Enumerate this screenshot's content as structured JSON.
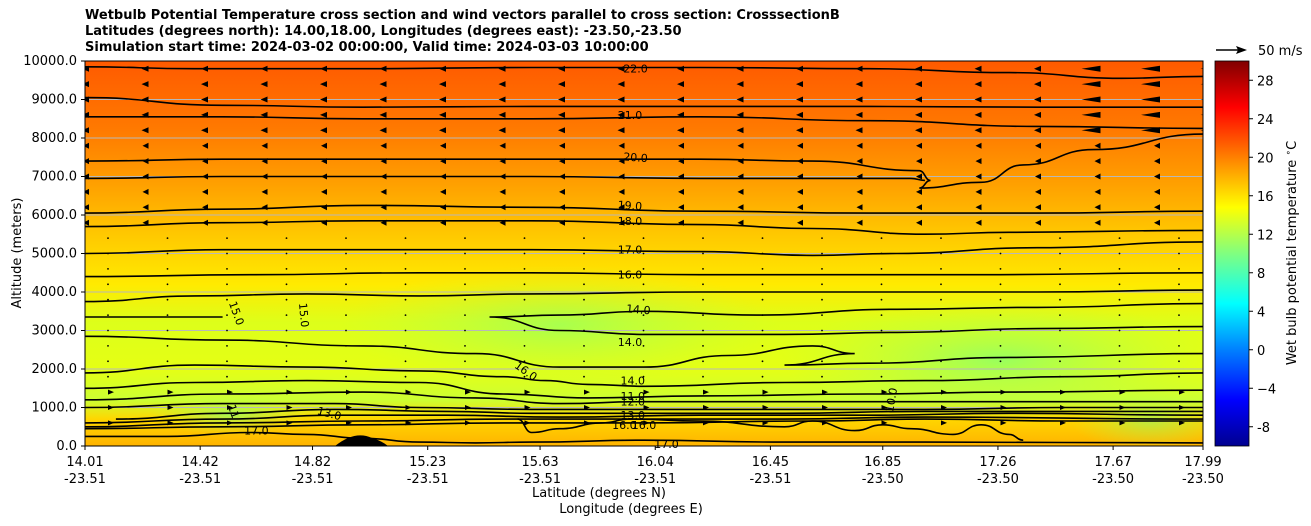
{
  "chart_data": {
    "type": "contour",
    "title": [
      "Wetbulb Potential Temperature cross section and wind vectors parallel to cross section: CrosssectionB",
      "Latitudes (degrees north): 14.00,18.00, Longitudes (degrees east): -23.50,-23.50",
      "Simulation start time: 2024-03-02 00:00:00, Valid time: 2024-03-03 10:00:00"
    ],
    "ylabel": "Altitude (meters)",
    "xlabel_lat": "Latitude (degrees N)",
    "xlabel_lon": "Longitude (degrees E)",
    "ylim": [
      0,
      10000
    ],
    "yticks": [
      "0.0",
      "1000.0",
      "2000.0",
      "3000.0",
      "4000.0",
      "5000.0",
      "6000.0",
      "7000.0",
      "8000.0",
      "9000.0",
      "10000.0"
    ],
    "xlim": [
      14.01,
      17.99
    ],
    "xticks_lat": [
      "14.01",
      "14.42",
      "14.82",
      "15.23",
      "15.63",
      "16.04",
      "16.45",
      "16.85",
      "17.26",
      "17.67",
      "17.99"
    ],
    "xticks_lon": [
      "-23.51",
      "-23.51",
      "-23.51",
      "-23.51",
      "-23.51",
      "-23.51",
      "-23.51",
      "-23.50",
      "-23.50",
      "-23.50",
      "-23.50"
    ],
    "colorbar": {
      "label": "Wet bulb potential temperature $^\\circ$C",
      "range": [
        -10,
        30
      ],
      "ticks": [
        "-8",
        "−4",
        "0",
        "4",
        "8",
        "12",
        "16",
        "20",
        "24",
        "28"
      ]
    },
    "quiver_key": "50 m/s",
    "contour_labels": [
      {
        "text": "22.0",
        "lat": 15.97,
        "alt": 9800,
        "rot": 0
      },
      {
        "text": "21.0",
        "lat": 15.95,
        "alt": 8600,
        "rot": 0
      },
      {
        "text": "20.0",
        "lat": 15.97,
        "alt": 7500,
        "rot": 4
      },
      {
        "text": "19.0",
        "lat": 15.95,
        "alt": 6250,
        "rot": 4
      },
      {
        "text": "18.0",
        "lat": 15.95,
        "alt": 5850,
        "rot": 0
      },
      {
        "text": "17.0",
        "lat": 15.95,
        "alt": 5100,
        "rot": 0
      },
      {
        "text": "16.0",
        "lat": 15.95,
        "alt": 4450,
        "rot": 0
      },
      {
        "text": "14.0",
        "lat": 15.98,
        "alt": 3550,
        "rot": 5
      },
      {
        "text": "14.0",
        "lat": 15.95,
        "alt": 2700,
        "rot": 0
      },
      {
        "text": "15.0",
        "lat": 14.55,
        "alt": 3450,
        "rot": 70
      },
      {
        "text": "15.0",
        "lat": 14.79,
        "alt": 3400,
        "rot": 85
      },
      {
        "text": "16.0",
        "lat": 15.58,
        "alt": 1950,
        "rot": 35
      },
      {
        "text": "14.0",
        "lat": 15.96,
        "alt": 1700,
        "rot": 0
      },
      {
        "text": "11.0",
        "lat": 15.96,
        "alt": 1300,
        "rot": 0
      },
      {
        "text": "12.0",
        "lat": 15.96,
        "alt": 1150,
        "rot": 0
      },
      {
        "text": "13.0",
        "lat": 15.96,
        "alt": 800,
        "rot": 0
      },
      {
        "text": "16.0",
        "lat": 15.93,
        "alt": 550,
        "rot": 0
      },
      {
        "text": "16.0",
        "lat": 16.0,
        "alt": 550,
        "rot": 0
      },
      {
        "text": "17.0",
        "lat": 14.62,
        "alt": 400,
        "rot": 0
      },
      {
        "text": "17.0",
        "lat": 16.08,
        "alt": 50,
        "rot": 0
      },
      {
        "text": "13.0",
        "lat": 14.88,
        "alt": 850,
        "rot": 15
      },
      {
        "text": "11",
        "lat": 14.54,
        "alt": 900,
        "rot": 70
      },
      {
        "text": "10.0",
        "lat": 16.88,
        "alt": 1200,
        "rot": -80
      }
    ],
    "contour_lines": [
      {
        "level": 22,
        "points": [
          [
            14.01,
            9850
          ],
          [
            14.4,
            9800
          ],
          [
            15.0,
            9800
          ],
          [
            15.6,
            9830
          ],
          [
            16.2,
            9830
          ],
          [
            16.8,
            9800
          ],
          [
            17.3,
            9700
          ],
          [
            17.7,
            9550
          ],
          [
            17.99,
            9600
          ]
        ]
      },
      {
        "level": 21.5,
        "points": [
          [
            14.01,
            9050
          ],
          [
            14.5,
            8850
          ],
          [
            15.0,
            8800
          ],
          [
            15.6,
            8820
          ],
          [
            16.2,
            8820
          ],
          [
            16.8,
            8820
          ],
          [
            17.4,
            8800
          ],
          [
            17.99,
            8800
          ]
        ]
      },
      {
        "level": 21,
        "points": [
          [
            14.01,
            8550
          ],
          [
            14.5,
            8550
          ],
          [
            15.0,
            8500
          ],
          [
            15.6,
            8500
          ],
          [
            16.2,
            8550
          ],
          [
            16.8,
            8450
          ],
          [
            17.4,
            8300
          ],
          [
            17.99,
            8250
          ]
        ]
      },
      {
        "level": 20,
        "points": [
          [
            14.01,
            7400
          ],
          [
            14.5,
            7450
          ],
          [
            15.0,
            7450
          ],
          [
            15.6,
            7450
          ],
          [
            16.2,
            7450
          ],
          [
            16.6,
            7400
          ],
          [
            16.98,
            7150
          ],
          [
            17.02,
            6900
          ],
          [
            16.98,
            6700
          ],
          [
            17.2,
            6850
          ],
          [
            17.35,
            7300
          ],
          [
            17.6,
            7700
          ],
          [
            17.99,
            8100
          ]
        ]
      },
      {
        "level": 19.5,
        "points": [
          [
            14.01,
            6950
          ],
          [
            14.5,
            7000
          ],
          [
            15.0,
            7000
          ],
          [
            15.6,
            7000
          ],
          [
            16.2,
            6950
          ],
          [
            16.5,
            6950
          ],
          [
            16.95,
            6950
          ],
          [
            17.0,
            6900
          ]
        ]
      },
      {
        "level": 19,
        "points": [
          [
            14.01,
            6050
          ],
          [
            14.5,
            6150
          ],
          [
            15.0,
            6250
          ],
          [
            15.6,
            6200
          ],
          [
            16.2,
            6100
          ],
          [
            16.8,
            6050
          ],
          [
            17.4,
            6050
          ],
          [
            17.99,
            6100
          ]
        ]
      },
      {
        "level": 18,
        "points": [
          [
            14.01,
            5700
          ],
          [
            14.5,
            5800
          ],
          [
            15.0,
            5850
          ],
          [
            15.6,
            5850
          ],
          [
            16.2,
            5750
          ],
          [
            16.6,
            5650
          ],
          [
            17.0,
            5500
          ],
          [
            17.3,
            5550
          ],
          [
            17.99,
            5600
          ]
        ]
      },
      {
        "level": 17,
        "points": [
          [
            14.01,
            5000
          ],
          [
            14.5,
            5100
          ],
          [
            15.0,
            5100
          ],
          [
            15.6,
            5100
          ],
          [
            16.2,
            5050
          ],
          [
            16.6,
            4950
          ],
          [
            16.9,
            5000
          ],
          [
            17.4,
            5150
          ],
          [
            17.99,
            5300
          ]
        ]
      },
      {
        "level": 16.5,
        "points": [
          [
            14.01,
            4400
          ],
          [
            14.6,
            4450
          ],
          [
            15.2,
            4500
          ],
          [
            15.6,
            4500
          ],
          [
            16.2,
            4450
          ],
          [
            16.7,
            4450
          ],
          [
            17.2,
            4450
          ],
          [
            17.99,
            4500
          ]
        ]
      },
      {
        "level": 16,
        "points": [
          [
            14.01,
            3750
          ],
          [
            14.4,
            3900
          ],
          [
            14.8,
            3950
          ],
          [
            15.2,
            3900
          ],
          [
            15.6,
            3950
          ],
          [
            16.2,
            4000
          ],
          [
            16.8,
            4000
          ],
          [
            17.4,
            4000
          ],
          [
            17.99,
            4050
          ]
        ]
      },
      {
        "level": 14,
        "points": [
          [
            17.99,
            3700
          ],
          [
            17.4,
            3600
          ],
          [
            16.9,
            3550
          ],
          [
            16.4,
            3400
          ],
          [
            16.0,
            3500
          ],
          [
            15.7,
            3400
          ],
          [
            15.45,
            3350
          ],
          [
            15.7,
            3000
          ],
          [
            16.0,
            2900
          ],
          [
            16.5,
            2900
          ],
          [
            16.9,
            2950
          ],
          [
            17.4,
            3050
          ],
          [
            17.99,
            3100
          ]
        ]
      },
      {
        "level": 15,
        "points": [
          [
            14.01,
            3350
          ],
          [
            14.3,
            3350
          ],
          [
            14.5,
            3350
          ]
        ]
      },
      {
        "level": 15.5,
        "points": [
          [
            14.01,
            2850
          ],
          [
            14.5,
            2750
          ],
          [
            15.0,
            2600
          ],
          [
            15.4,
            2400
          ],
          [
            15.7,
            2050
          ],
          [
            16.0,
            2050
          ],
          [
            16.3,
            2350
          ],
          [
            16.6,
            2600
          ],
          [
            16.75,
            2400
          ],
          [
            16.5,
            2100
          ],
          [
            16.8,
            2150
          ],
          [
            17.3,
            2300
          ],
          [
            17.99,
            2400
          ]
        ]
      },
      {
        "level": 16,
        "points": [
          [
            14.01,
            1900
          ],
          [
            14.4,
            2100
          ],
          [
            14.8,
            2050
          ],
          [
            15.2,
            1950
          ],
          [
            15.5,
            1800
          ],
          [
            15.65,
            1700
          ],
          [
            15.8,
            1600
          ],
          [
            16.0,
            1550
          ],
          [
            16.5,
            1650
          ],
          [
            17.0,
            1700
          ],
          [
            17.5,
            1800
          ],
          [
            17.99,
            1900
          ]
        ]
      },
      {
        "level": 15,
        "points": [
          [
            14.01,
            1500
          ],
          [
            14.4,
            1650
          ],
          [
            14.8,
            1700
          ],
          [
            15.2,
            1650
          ],
          [
            15.5,
            1350
          ],
          [
            15.8,
            1250
          ],
          [
            16.2,
            1300
          ],
          [
            16.8,
            1350
          ],
          [
            17.3,
            1400
          ],
          [
            17.99,
            1450
          ]
        ]
      },
      {
        "level": 14,
        "points": [
          [
            14.01,
            1200
          ],
          [
            14.5,
            1350
          ],
          [
            15.0,
            1400
          ],
          [
            15.4,
            1250
          ],
          [
            15.7,
            1100
          ],
          [
            16.0,
            1150
          ],
          [
            16.5,
            1150
          ],
          [
            16.9,
            1150
          ],
          [
            17.2,
            1150
          ],
          [
            17.99,
            1150
          ]
        ]
      },
      {
        "level": 13,
        "points": [
          [
            14.01,
            1000
          ],
          [
            14.5,
            1100
          ],
          [
            14.9,
            1100
          ],
          [
            15.2,
            1000
          ],
          [
            15.6,
            950
          ],
          [
            16.0,
            950
          ],
          [
            16.5,
            950
          ],
          [
            17.0,
            950
          ],
          [
            17.5,
            1000
          ],
          [
            17.99,
            1000
          ]
        ]
      },
      {
        "level": 12,
        "points": [
          [
            14.12,
            700
          ],
          [
            14.5,
            850
          ],
          [
            14.9,
            950
          ],
          [
            15.3,
            900
          ],
          [
            15.6,
            850
          ],
          [
            16.0,
            850
          ],
          [
            16.5,
            850
          ],
          [
            17.0,
            900
          ],
          [
            17.5,
            900
          ],
          [
            17.99,
            900
          ]
        ]
      },
      {
        "level": 11,
        "points": [
          [
            14.01,
            600
          ],
          [
            14.5,
            700
          ],
          [
            14.9,
            800
          ],
          [
            15.3,
            800
          ],
          [
            15.7,
            750
          ],
          [
            16.2,
            800
          ],
          [
            16.8,
            800
          ],
          [
            17.3,
            850
          ],
          [
            17.99,
            800
          ]
        ]
      },
      {
        "level": 10.5,
        "points": [
          [
            14.01,
            500
          ],
          [
            14.5,
            600
          ],
          [
            15.0,
            650
          ],
          [
            15.5,
            700
          ],
          [
            16.0,
            700
          ],
          [
            16.5,
            700
          ],
          [
            17.0,
            750
          ],
          [
            17.99,
            700
          ]
        ]
      },
      {
        "level": 10,
        "points": [
          [
            14.01,
            450
          ],
          [
            14.5,
            500
          ],
          [
            15.0,
            550
          ],
          [
            15.5,
            600
          ],
          [
            16.0,
            600
          ],
          [
            16.6,
            650
          ],
          [
            17.0,
            700
          ],
          [
            17.5,
            650
          ],
          [
            17.99,
            650
          ]
        ]
      },
      {
        "level": 16.5,
        "points": [
          [
            15.55,
            700
          ],
          [
            15.6,
            350
          ],
          [
            15.7,
            450
          ],
          [
            15.85,
            600
          ],
          [
            15.95,
            700
          ],
          [
            16.2,
            650
          ],
          [
            16.5,
            500
          ],
          [
            16.6,
            650
          ],
          [
            16.75,
            400
          ],
          [
            16.85,
            550
          ],
          [
            16.95,
            450
          ],
          [
            17.1,
            300
          ],
          [
            17.2,
            550
          ],
          [
            17.3,
            300
          ],
          [
            17.35,
            150
          ]
        ]
      },
      {
        "level": 17,
        "points": [
          [
            14.01,
            250
          ],
          [
            14.3,
            250
          ],
          [
            14.6,
            350
          ],
          [
            14.8,
            300
          ],
          [
            15.0,
            200
          ],
          [
            15.2,
            100
          ],
          [
            15.4,
            80
          ],
          [
            15.6,
            100
          ],
          [
            16.0,
            150
          ],
          [
            16.5,
            100
          ],
          [
            17.0,
            100
          ],
          [
            17.99,
            80
          ]
        ]
      }
    ]
  }
}
